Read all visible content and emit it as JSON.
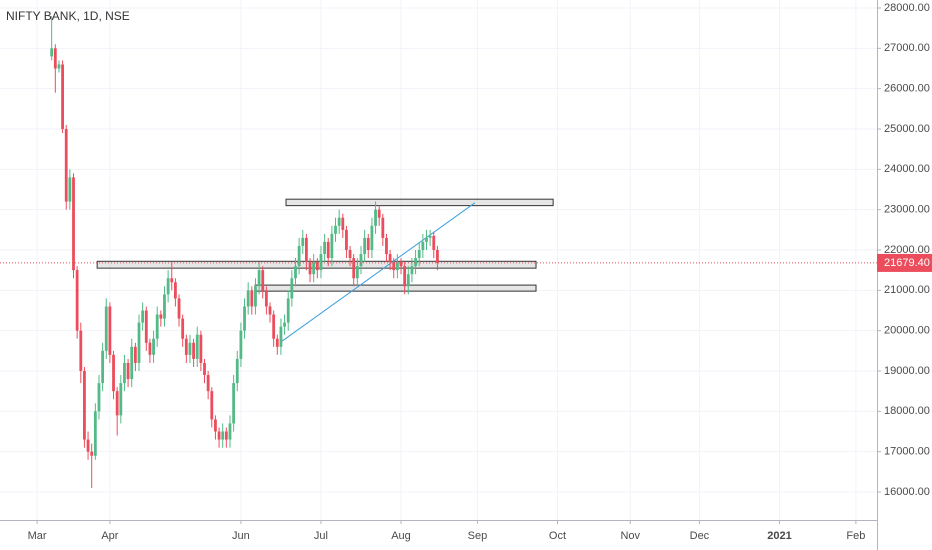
{
  "chart_data": {
    "type": "candlestick",
    "title": "NIFTY BANK, 1D, NSE",
    "up_color": "#53b987",
    "down_color": "#eb4d5c",
    "x": [
      4,
      5,
      6,
      7,
      8,
      9,
      10,
      11,
      12,
      13,
      14,
      15,
      16,
      17,
      18,
      19,
      20,
      21,
      22,
      23,
      24,
      25,
      26,
      27,
      28,
      29,
      30,
      31,
      32,
      33,
      34,
      35,
      36,
      37,
      38,
      39,
      40,
      41,
      42,
      43,
      44,
      45,
      46,
      47,
      48,
      49,
      50,
      51,
      52,
      53,
      54,
      55,
      56,
      57,
      58,
      59,
      60,
      61,
      62,
      63,
      64,
      65,
      66,
      67,
      68,
      69,
      70,
      71,
      72,
      73,
      74,
      75,
      76,
      77,
      78,
      79,
      80,
      81,
      82,
      83,
      84,
      85,
      86,
      87,
      88,
      89,
      90,
      91,
      92,
      93,
      94,
      95,
      96,
      97,
      98,
      99,
      100,
      101,
      102,
      103,
      104,
      105,
      106,
      107,
      108,
      109,
      110
    ],
    "open": [
      26800,
      27000,
      26500,
      26600,
      25000,
      23200,
      23800,
      21500,
      20000,
      19000,
      17300,
      17000,
      16900,
      18000,
      18700,
      19500,
      20600,
      19400,
      18500,
      17900,
      18700,
      19200,
      18800,
      19600,
      19200,
      20200,
      20500,
      19700,
      19400,
      19800,
      20400,
      20300,
      20900,
      21300,
      21200,
      20800,
      20300,
      19800,
      19400,
      19700,
      19300,
      19900,
      19200,
      18900,
      18500,
      17800,
      17500,
      17300,
      17500,
      17300,
      17700,
      18700,
      19300,
      20000,
      20600,
      21000,
      20600,
      21100,
      21500,
      21000,
      20600,
      20400,
      19800,
      19600,
      20100,
      20200,
      20800,
      21300,
      21600,
      22100,
      22300,
      21700,
      21400,
      21700,
      21500,
      21900,
      22200,
      21800,
      22400,
      22600,
      22800,
      22500,
      22000,
      21800,
      21300,
      21600,
      21900,
      22300,
      22000,
      22600,
      23000,
      22800,
      22300,
      21900,
      21700,
      21500,
      21700,
      21600,
      21100,
      21400,
      21600,
      21800,
      22000,
      22200,
      22300,
      22350,
      22000
    ],
    "high": [
      27800,
      27100,
      26700,
      26700,
      25100,
      24000,
      23900,
      21600,
      20200,
      19100,
      17500,
      17200,
      18200,
      18900,
      19700,
      20800,
      20700,
      19500,
      18600,
      18900,
      19400,
      19300,
      19800,
      19700,
      20400,
      20700,
      20600,
      19800,
      20000,
      20600,
      20500,
      21100,
      21500,
      21700,
      21300,
      20900,
      20400,
      19900,
      19900,
      19800,
      20100,
      20000,
      19300,
      19000,
      18600,
      17900,
      17600,
      17700,
      17600,
      17900,
      18900,
      19500,
      20200,
      20800,
      21200,
      21100,
      21300,
      21700,
      21600,
      21100,
      20700,
      20500,
      19900,
      20300,
      20400,
      21000,
      21500,
      21800,
      22300,
      22500,
      22400,
      21800,
      21900,
      21800,
      22100,
      22400,
      22300,
      22600,
      22800,
      23000,
      22900,
      22600,
      22100,
      21900,
      21800,
      22100,
      22500,
      22400,
      22800,
      23200,
      23100,
      22900,
      22400,
      22000,
      21800,
      21900,
      21800,
      21700,
      21600,
      21800,
      22000,
      22200,
      22400,
      22500,
      22500,
      22450,
      22100
    ],
    "low": [
      26700,
      25900,
      26400,
      24900,
      23000,
      23000,
      21300,
      19800,
      18700,
      17100,
      16800,
      16100,
      16800,
      17800,
      18500,
      19300,
      19200,
      18300,
      17400,
      17700,
      18500,
      18600,
      18600,
      19000,
      19000,
      20000,
      19500,
      19200,
      19200,
      19600,
      20100,
      20100,
      20700,
      21000,
      20600,
      20100,
      19600,
      19200,
      19200,
      19100,
      19100,
      19000,
      18700,
      18300,
      17600,
      17300,
      17100,
      17100,
      17100,
      17100,
      17500,
      18500,
      19100,
      19800,
      20400,
      20400,
      20400,
      20900,
      20800,
      20400,
      20200,
      19600,
      19400,
      19400,
      19900,
      20000,
      20600,
      21100,
      21400,
      21900,
      21500,
      21200,
      21200,
      21300,
      21300,
      21700,
      21600,
      21600,
      22200,
      22400,
      22300,
      21800,
      21600,
      21100,
      21100,
      21400,
      21700,
      21800,
      21800,
      22400,
      22600,
      22100,
      21700,
      21500,
      21300,
      21300,
      21400,
      20900,
      20900,
      21200,
      21400,
      21600,
      21800,
      22000,
      22100,
      21800,
      21500
    ],
    "close": [
      27000,
      26500,
      26600,
      25000,
      23200,
      23800,
      21500,
      20000,
      19000,
      17300,
      17000,
      16900,
      18000,
      18700,
      19500,
      20600,
      19400,
      18500,
      17900,
      18700,
      19200,
      18800,
      19600,
      19200,
      20200,
      20500,
      19700,
      19400,
      19800,
      20400,
      20300,
      20900,
      21300,
      21200,
      20800,
      20300,
      19800,
      19400,
      19700,
      19300,
      19900,
      19200,
      18900,
      18500,
      17800,
      17500,
      17300,
      17500,
      17300,
      17700,
      18700,
      19300,
      20000,
      20600,
      21000,
      20600,
      21100,
      21500,
      21000,
      20600,
      20400,
      19800,
      19600,
      20100,
      20200,
      20800,
      21300,
      21600,
      22100,
      22300,
      21700,
      21400,
      21700,
      21500,
      21900,
      22200,
      21800,
      22400,
      22600,
      22800,
      22500,
      22000,
      21800,
      21300,
      21600,
      21900,
      22300,
      22000,
      22600,
      23000,
      22800,
      22300,
      21900,
      21700,
      21500,
      21700,
      21600,
      21100,
      21400,
      21600,
      21800,
      22000,
      22200,
      22300,
      22350,
      22000,
      21679.4
    ],
    "last_price_label": "21679.40",
    "zones": [
      {
        "x0": 68.4,
        "x1": 141.8,
        "y0": 23100,
        "y1": 23260
      },
      {
        "x0": 16.5,
        "x1": 137.1,
        "y0": 21550,
        "y1": 21720
      },
      {
        "x0": 59.9,
        "x1": 137.1,
        "y0": 20980,
        "y1": 21130
      }
    ],
    "trend_line": {
      "x": [
        67,
        120.3
      ],
      "y": [
        19720,
        23170
      ]
    },
    "xlim": [
      -10.2,
      230.8
    ],
    "ylim": [
      15306,
      28198
    ],
    "xticks": [
      {
        "value": 0,
        "label": "Mar"
      },
      {
        "value": 20,
        "label": "Apr"
      },
      {
        "value": 56,
        "label": "Jun"
      },
      {
        "value": 78,
        "label": "Jul"
      },
      {
        "value": 100,
        "label": "Aug"
      },
      {
        "value": 121,
        "label": "Sep"
      },
      {
        "value": 143,
        "label": "Oct"
      },
      {
        "value": 163,
        "label": "Nov"
      },
      {
        "value": 182,
        "label": "Dec"
      },
      {
        "value": 204,
        "label": "2021"
      },
      {
        "value": 225,
        "label": "Feb"
      }
    ],
    "yticks": [
      {
        "value": 16000,
        "label": "16000.00"
      },
      {
        "value": 17000,
        "label": "17000.00"
      },
      {
        "value": 18000,
        "label": "18000.00"
      },
      {
        "value": 19000,
        "label": "19000.00"
      },
      {
        "value": 20000,
        "label": "20000.00"
      },
      {
        "value": 21000,
        "label": "21000.00"
      },
      {
        "value": 22000,
        "label": "22000.00"
      },
      {
        "value": 23000,
        "label": "23000.00"
      },
      {
        "value": 24000,
        "label": "24000.00"
      },
      {
        "value": 25000,
        "label": "25000.00"
      },
      {
        "value": 26000,
        "label": "26000.00"
      },
      {
        "value": 27000,
        "label": "27000.00"
      },
      {
        "value": 28000,
        "label": "28000.00"
      }
    ],
    "grid": true
  }
}
